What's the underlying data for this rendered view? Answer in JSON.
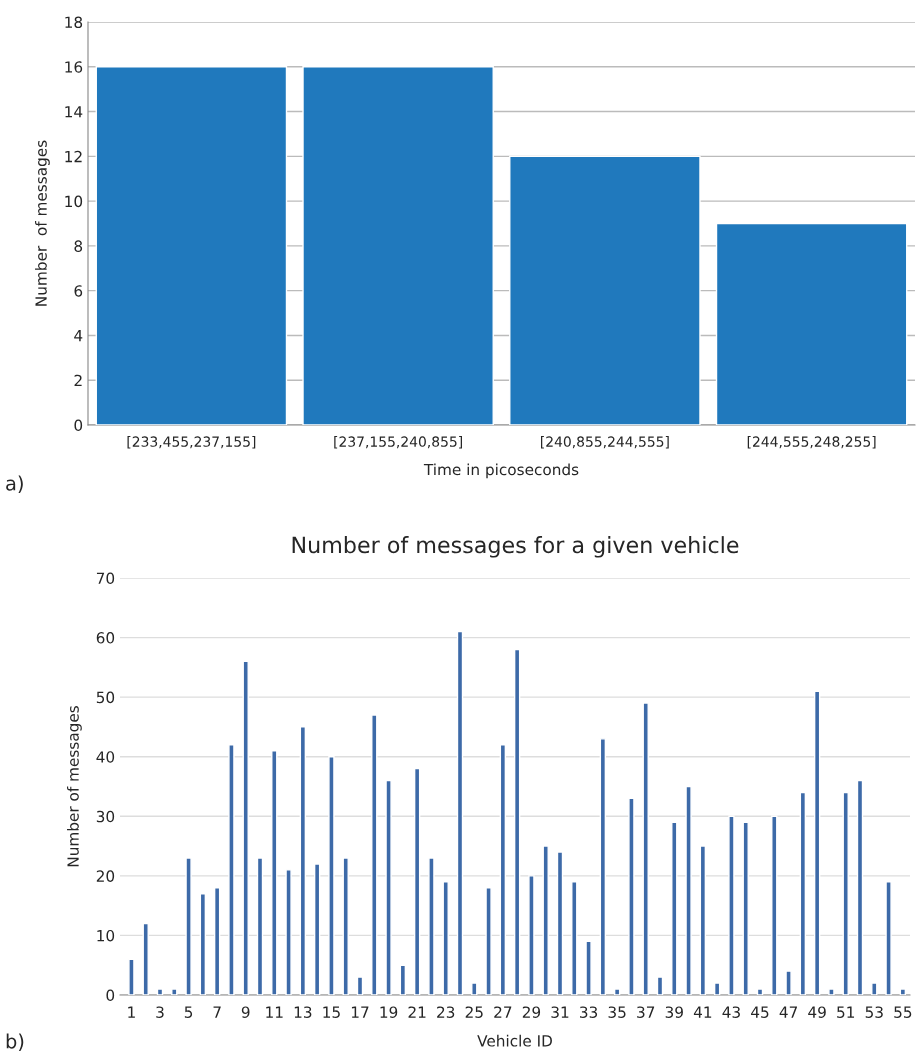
{
  "chart_data": [
    {
      "type": "bar",
      "categories": [
        "[233,455,237,155]",
        "[237,155,240,855]",
        "[240,855,244,555]",
        "[244,555,248,255]"
      ],
      "values": [
        16,
        16,
        12,
        9
      ],
      "color": "#2079bd",
      "xlabel": "Time in picoseconds",
      "ylabel": "Number  of messages",
      "ylim": [
        0,
        18
      ],
      "yticks": [
        0,
        2,
        4,
        6,
        8,
        10,
        12,
        14,
        16,
        18
      ],
      "grid": "y",
      "annotations": [
        "a)"
      ]
    },
    {
      "type": "bar",
      "title": "Number of messages for a given vehicle",
      "categories": [
        "1",
        null,
        "3",
        null,
        "5",
        null,
        "7",
        null,
        "9",
        null,
        "11",
        null,
        "13",
        null,
        "15",
        null,
        "17",
        null,
        "19",
        null,
        "21",
        null,
        "23",
        null,
        "25",
        null,
        "27",
        null,
        "29",
        null,
        "31",
        null,
        "33",
        null,
        "35",
        null,
        "37",
        null,
        "39",
        null,
        "41",
        null,
        "43",
        null,
        "45",
        null,
        "47",
        null,
        "49",
        null,
        "51",
        null,
        "53",
        null,
        "55"
      ],
      "values": [
        6,
        12,
        1,
        1,
        23,
        17,
        18,
        42,
        56,
        23,
        41,
        21,
        45,
        22,
        40,
        23,
        3,
        47,
        36,
        5,
        38,
        23,
        19,
        61,
        2,
        18,
        42,
        58,
        20,
        25,
        24,
        19,
        9,
        43,
        1,
        33,
        49,
        3,
        29,
        35,
        25,
        2,
        30,
        29,
        1,
        30,
        4,
        34,
        51,
        1,
        34,
        36,
        2,
        19,
        1
      ],
      "color": "#3d6aa8",
      "xlabel": "Vehicle ID",
      "ylabel": "Number of messages",
      "ylim": [
        0,
        70
      ],
      "yticks": [
        0,
        10,
        20,
        30,
        40,
        50,
        60,
        70
      ],
      "grid": "y",
      "annotations": [
        "b)"
      ]
    }
  ]
}
